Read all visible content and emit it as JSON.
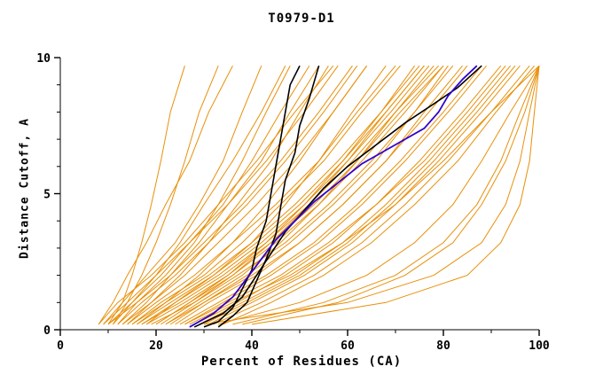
{
  "page": {
    "background": "#ffffff"
  },
  "chart_data": {
    "type": "line",
    "title": "T0979-D1",
    "xlabel": "Percent of Residues (CA)",
    "ylabel": "Distance Cutoff, A",
    "xlim": [
      0,
      100
    ],
    "ylim": [
      0,
      10
    ],
    "x_major_ticks": [
      0,
      20,
      40,
      60,
      80,
      100
    ],
    "x_minor_step": 10,
    "y_major_ticks": [
      0,
      5,
      10
    ],
    "y_minor_step": 1,
    "grid": false,
    "legend": "none",
    "colors": {
      "ensemble": "#e8900a",
      "highlight": "#000000",
      "special": "#3300cc",
      "axis": "#000000"
    },
    "y_levels": [
      0.2,
      1.0,
      2.0,
      3.2,
      4.6,
      6.2,
      8.0,
      9.7
    ],
    "ensemble_x": [
      [
        10,
        13,
        15,
        17,
        19,
        21,
        23,
        26
      ],
      [
        11,
        14,
        17,
        20,
        23,
        26,
        29,
        33
      ],
      [
        9,
        13,
        18,
        24,
        29,
        34,
        38,
        42
      ],
      [
        12,
        16,
        22,
        28,
        33,
        38,
        43,
        48
      ],
      [
        10,
        15,
        21,
        27,
        34,
        40,
        46,
        52
      ],
      [
        14,
        19,
        25,
        31,
        37,
        44,
        50,
        56
      ],
      [
        8,
        12,
        19,
        26,
        33,
        41,
        49,
        57
      ],
      [
        16,
        22,
        29,
        36,
        43,
        50,
        57,
        64
      ],
      [
        18,
        24,
        32,
        40,
        47,
        54,
        61,
        68
      ],
      [
        15,
        21,
        30,
        38,
        46,
        55,
        63,
        71
      ],
      [
        20,
        27,
        35,
        43,
        51,
        59,
        67,
        74
      ],
      [
        22,
        29,
        38,
        46,
        54,
        62,
        70,
        78
      ],
      [
        17,
        25,
        34,
        43,
        52,
        61,
        70,
        79
      ],
      [
        19,
        28,
        37,
        47,
        56,
        65,
        74,
        82
      ],
      [
        24,
        31,
        41,
        50,
        59,
        68,
        77,
        85
      ],
      [
        26,
        34,
        44,
        54,
        63,
        72,
        81,
        89
      ],
      [
        28,
        37,
        47,
        57,
        66,
        75,
        84,
        92
      ],
      [
        30,
        39,
        50,
        60,
        69,
        78,
        87,
        95
      ],
      [
        32,
        42,
        53,
        63,
        72,
        81,
        90,
        98
      ],
      [
        27,
        36,
        48,
        59,
        70,
        80,
        90,
        100
      ],
      [
        33,
        50,
        64,
        74,
        82,
        88,
        94,
        100
      ],
      [
        36,
        55,
        70,
        80,
        87,
        92,
        96,
        100
      ],
      [
        30,
        60,
        78,
        88,
        93,
        96,
        98,
        100
      ],
      [
        11,
        15,
        20,
        25,
        30,
        36,
        42,
        47
      ],
      [
        13,
        18,
        23,
        29,
        35,
        42,
        48,
        54
      ],
      [
        14,
        20,
        28,
        36,
        45,
        54,
        62,
        70
      ],
      [
        21,
        28,
        36,
        44,
        52,
        60,
        68,
        76
      ],
      [
        23,
        30,
        39,
        48,
        57,
        66,
        74,
        81
      ],
      [
        16,
        23,
        32,
        41,
        50,
        59,
        68,
        76
      ],
      [
        25,
        33,
        43,
        53,
        62,
        71,
        80,
        88
      ],
      [
        29,
        38,
        49,
        59,
        68,
        77,
        86,
        94
      ],
      [
        18,
        26,
        35,
        44,
        53,
        62,
        71,
        80
      ],
      [
        9,
        14,
        20,
        27,
        35,
        43,
        51,
        58
      ],
      [
        12,
        17,
        24,
        31,
        39,
        47,
        55,
        62
      ],
      [
        20,
        27,
        36,
        45,
        54,
        63,
        72,
        80
      ],
      [
        31,
        40,
        51,
        61,
        70,
        79,
        88,
        96
      ],
      [
        34,
        44,
        55,
        65,
        74,
        83,
        91,
        99
      ],
      [
        22,
        30,
        40,
        50,
        59,
        68,
        76,
        84
      ],
      [
        10,
        16,
        23,
        30,
        38,
        46,
        54,
        61
      ],
      [
        8,
        11,
        14,
        18,
        22,
        27,
        31,
        36
      ],
      [
        15,
        22,
        31,
        40,
        49,
        58,
        67,
        75
      ],
      [
        26,
        35,
        46,
        56,
        66,
        76,
        85,
        93
      ],
      [
        38,
        58,
        72,
        82,
        88,
        93,
        97,
        100
      ],
      [
        17,
        24,
        33,
        42,
        51,
        60,
        69,
        77
      ],
      [
        13,
        19,
        26,
        33,
        41,
        49,
        57,
        64
      ],
      [
        40,
        68,
        85,
        92,
        96,
        98,
        99,
        100
      ]
    ],
    "highlight_series": [
      {
        "role": "highlight",
        "points": [
          [
            30,
            0.1
          ],
          [
            33,
            0.3
          ],
          [
            36,
            0.8
          ],
          [
            38,
            1.5
          ],
          [
            40,
            2.2
          ],
          [
            41,
            3.0
          ],
          [
            43,
            4.0
          ],
          [
            44,
            5.0
          ],
          [
            45,
            6.0
          ],
          [
            46,
            7.0
          ],
          [
            47,
            8.0
          ],
          [
            48,
            9.0
          ],
          [
            50,
            9.7
          ]
        ]
      },
      {
        "role": "highlight",
        "points": [
          [
            33,
            0.1
          ],
          [
            36,
            0.5
          ],
          [
            39,
            1.0
          ],
          [
            41,
            1.8
          ],
          [
            43,
            2.6
          ],
          [
            45,
            3.5
          ],
          [
            46,
            4.5
          ],
          [
            47,
            5.5
          ],
          [
            49,
            6.5
          ],
          [
            50,
            7.5
          ],
          [
            52,
            8.5
          ],
          [
            54,
            9.7
          ]
        ]
      },
      {
        "role": "highlight",
        "points": [
          [
            28,
            0.1
          ],
          [
            34,
            0.6
          ],
          [
            38,
            1.2
          ],
          [
            41,
            2.0
          ],
          [
            44,
            2.8
          ],
          [
            47,
            3.6
          ],
          [
            51,
            4.4
          ],
          [
            55,
            5.2
          ],
          [
            60,
            6.0
          ],
          [
            66,
            6.8
          ],
          [
            72,
            7.6
          ],
          [
            78,
            8.3
          ],
          [
            83,
            8.9
          ],
          [
            88,
            9.7
          ]
        ]
      },
      {
        "role": "special",
        "points": [
          [
            27,
            0.1
          ],
          [
            32,
            0.6
          ],
          [
            36,
            1.2
          ],
          [
            39,
            1.9
          ],
          [
            42,
            2.6
          ],
          [
            45,
            3.3
          ],
          [
            49,
            4.0
          ],
          [
            53,
            4.7
          ],
          [
            58,
            5.4
          ],
          [
            63,
            6.1
          ],
          [
            70,
            6.8
          ],
          [
            76,
            7.4
          ],
          [
            79,
            8.0
          ],
          [
            81,
            8.6
          ],
          [
            84,
            9.2
          ],
          [
            87,
            9.7
          ]
        ]
      }
    ]
  }
}
